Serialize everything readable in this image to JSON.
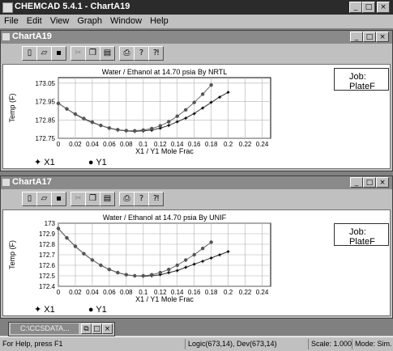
{
  "app": {
    "title": "CHEMCAD 5.4.1 - ChartA19",
    "controls": [
      "_",
      "□",
      "×"
    ]
  },
  "menu": [
    "File",
    "Edit",
    "View",
    "Graph",
    "Window",
    "Help"
  ],
  "windows": [
    {
      "title": "ChartA19",
      "controls": [
        "_",
        "□",
        "×"
      ],
      "job_label": "Job:",
      "job_value": "PlateF",
      "chart_data": {
        "type": "scatter",
        "title": "Water / Ethanol at   14.70 psia By NRTL",
        "xlabel": "X1 / Y1 Mole Frac",
        "ylabel": "Temp (F)",
        "xlim": [
          0,
          0.25
        ],
        "ylim": [
          172.75,
          173.08
        ],
        "xticks": [
          "0",
          "0.02",
          "0.04",
          "0.06",
          "0.08",
          "0.1",
          "0.12",
          "0.14",
          "0.16",
          "0.18",
          "0.2",
          "0.22",
          "0.24"
        ],
        "yticks": [
          "173.05",
          "172.95",
          "172.85",
          "172.75"
        ],
        "grid": true,
        "legend": "bottom-left",
        "series": [
          {
            "name": "X1",
            "marker": "star",
            "x": [
              0,
              0.01,
              0.02,
              0.03,
              0.04,
              0.05,
              0.06,
              0.07,
              0.08,
              0.09,
              0.1,
              0.11,
              0.12,
              0.13,
              0.14,
              0.15,
              0.16,
              0.17,
              0.18,
              0.19,
              0.2
            ],
            "y": [
              172.94,
              172.91,
              172.88,
              172.855,
              172.835,
              172.82,
              172.805,
              172.795,
              172.79,
              172.788,
              172.79,
              172.795,
              172.805,
              172.82,
              172.84,
              172.86,
              172.885,
              172.915,
              172.945,
              172.975,
              173.0
            ]
          },
          {
            "name": "Y1",
            "marker": "dot",
            "x": [
              0,
              0.01,
              0.02,
              0.03,
              0.04,
              0.05,
              0.06,
              0.07,
              0.08,
              0.09,
              0.1,
              0.11,
              0.12,
              0.13,
              0.14,
              0.15,
              0.16,
              0.17,
              0.18
            ],
            "y": [
              172.94,
              172.91,
              172.882,
              172.858,
              172.838,
              172.82,
              172.806,
              172.797,
              172.792,
              172.791,
              172.795,
              172.803,
              172.818,
              172.84,
              172.87,
              172.905,
              172.945,
              172.99,
              173.04
            ]
          }
        ]
      }
    },
    {
      "title": "ChartA17",
      "controls": [
        "_",
        "□",
        "×"
      ],
      "job_label": "Job:",
      "job_value": "PlateF",
      "chart_data": {
        "type": "scatter",
        "title": "Water / Ethanol at   14.70 psia By UNIF",
        "xlabel": "X1 / Y1 Mole Frac",
        "ylabel": "Temp (F)",
        "xlim": [
          0,
          0.25
        ],
        "ylim": [
          172.4,
          173.0
        ],
        "xticks": [
          "0",
          "0.02",
          "0.04",
          "0.06",
          "0.08",
          "0.1",
          "0.12",
          "0.14",
          "0.16",
          "0.18",
          "0.2",
          "0.22",
          "0.24"
        ],
        "yticks": [
          "173",
          "172.9",
          "172.8",
          "172.7",
          "172.6",
          "172.5",
          "172.4"
        ],
        "grid": true,
        "legend": "bottom-left",
        "series": [
          {
            "name": "X1",
            "marker": "star",
            "x": [
              0,
              0.01,
              0.02,
              0.03,
              0.04,
              0.05,
              0.06,
              0.07,
              0.08,
              0.09,
              0.1,
              0.11,
              0.12,
              0.13,
              0.14,
              0.15,
              0.16,
              0.17,
              0.18,
              0.19,
              0.2
            ],
            "y": [
              172.95,
              172.86,
              172.78,
              172.71,
              172.65,
              172.6,
              172.56,
              172.53,
              172.51,
              172.5,
              172.495,
              172.5,
              172.51,
              172.53,
              172.55,
              172.58,
              172.61,
              172.64,
              172.67,
              172.7,
              172.73
            ]
          },
          {
            "name": "Y1",
            "marker": "dot",
            "x": [
              0,
              0.01,
              0.02,
              0.03,
              0.04,
              0.05,
              0.06,
              0.07,
              0.08,
              0.09,
              0.1,
              0.11,
              0.12,
              0.13,
              0.14,
              0.15,
              0.16,
              0.17,
              0.18
            ],
            "y": [
              172.95,
              172.86,
              172.78,
              172.71,
              172.65,
              172.6,
              172.56,
              172.53,
              172.51,
              172.5,
              172.5,
              172.51,
              172.53,
              172.56,
              172.6,
              172.65,
              172.7,
              172.76,
              172.82
            ]
          }
        ]
      }
    }
  ],
  "taskbar_item": "C:\\CCSDATA...",
  "status": {
    "help": "For Help, press F1",
    "coords": "Logic(673,14), Dev(673,14)",
    "scale": "Scale: 1.000",
    "mode": "Mode: Sim."
  }
}
